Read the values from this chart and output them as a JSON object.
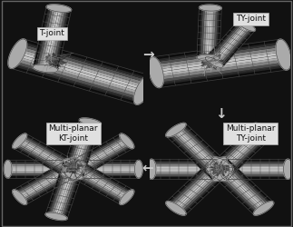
{
  "background_color": "#111111",
  "labels": {
    "top_left": "T-joint",
    "top_right": "TY-joint",
    "bottom_left": "Multi-planar\nKT-joint",
    "bottom_right": "Multi-planar\nTY-joint"
  },
  "label_fontsize": 6.5,
  "label_box_color": "#e0e0e0",
  "label_text_color": "#111111",
  "arrow_color": "#cccccc",
  "figsize": [
    3.23,
    2.5
  ],
  "dpi": 100,
  "border_color": "#888888",
  "border_lw": 0.8
}
